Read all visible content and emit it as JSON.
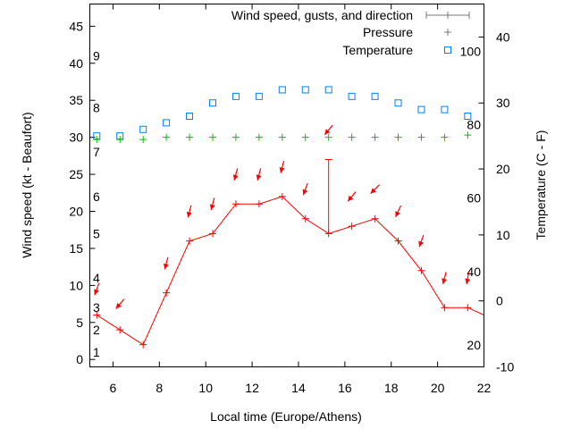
{
  "chart_data": {
    "type": "line",
    "xlabel": "Local time (Europe/Athens)",
    "ylabel": "Wind speed (kt - Beaufort)",
    "y2label": "Temperature (C - F)",
    "xlim": [
      5,
      22
    ],
    "ylim": [
      -1,
      48
    ],
    "y2lim": [
      -10,
      45
    ],
    "xticks": [
      6,
      8,
      10,
      12,
      14,
      16,
      18,
      20,
      22
    ],
    "yticks": [
      0,
      5,
      10,
      15,
      20,
      25,
      30,
      35,
      40,
      45
    ],
    "y2ticks": [
      -10,
      0,
      10,
      20,
      30,
      40
    ],
    "beaufort_labels": [
      {
        "label": "1",
        "kt": 1
      },
      {
        "label": "2",
        "kt": 4
      },
      {
        "label": "3",
        "kt": 7
      },
      {
        "label": "4",
        "kt": 11
      },
      {
        "label": "5",
        "kt": 17
      },
      {
        "label": "6",
        "kt": 22
      },
      {
        "label": "7",
        "kt": 28
      },
      {
        "label": "8",
        "kt": 34
      },
      {
        "label": "9",
        "kt": 41
      }
    ],
    "fahrenheit_labels": [
      {
        "label": "20",
        "c": -6.7
      },
      {
        "label": "40",
        "c": 4.4
      },
      {
        "label": "60",
        "c": 15.6
      },
      {
        "label": "80",
        "c": 26.7
      },
      {
        "label": "100",
        "c": 37.8
      }
    ],
    "legend": {
      "placement": "top-right",
      "entries": [
        "Wind speed, gusts, and direction",
        "Pressure",
        "Temperature"
      ]
    },
    "x": [
      5.3,
      6.3,
      7.3,
      8.3,
      9.3,
      10.3,
      11.3,
      12.3,
      13.3,
      14.3,
      15.3,
      16.3,
      17.3,
      18.3,
      19.3,
      20.3,
      21.3
    ],
    "series": [
      {
        "name": "Wind speed, gusts, and direction",
        "color": "#ff0000",
        "values": [
          6,
          4,
          2,
          9,
          16,
          17,
          21,
          21,
          22,
          19,
          17,
          18,
          19,
          16,
          12,
          7,
          7
        ],
        "line_end": {
          "x": 22,
          "y": 6
        },
        "gusts": [
          null,
          null,
          null,
          null,
          null,
          null,
          null,
          null,
          null,
          null,
          27,
          null,
          null,
          null,
          null,
          null,
          null
        ],
        "direction_deg": [
          20,
          40,
          20,
          15,
          15,
          15,
          15,
          15,
          15,
          20,
          40,
          40,
          45,
          25,
          20,
          15,
          10
        ],
        "arrow_level_kt": [
          9.5,
          7.5,
          null,
          13,
          20,
          21,
          25,
          25,
          26,
          23,
          31,
          22,
          23,
          20,
          16,
          11,
          11
        ]
      },
      {
        "name": "Pressure",
        "color": "#00c000",
        "axis": "y",
        "values": [
          29.7,
          29.7,
          29.7,
          30,
          30,
          30,
          30,
          30,
          30,
          30,
          30,
          30,
          30,
          30,
          30,
          30,
          30.3
        ]
      },
      {
        "name": "Temperature",
        "color": "#0080ff",
        "axis": "y2",
        "values": [
          25,
          25,
          26,
          27,
          28,
          30,
          31,
          31,
          32,
          32,
          32,
          31,
          31,
          30,
          29,
          29,
          28
        ]
      }
    ]
  }
}
